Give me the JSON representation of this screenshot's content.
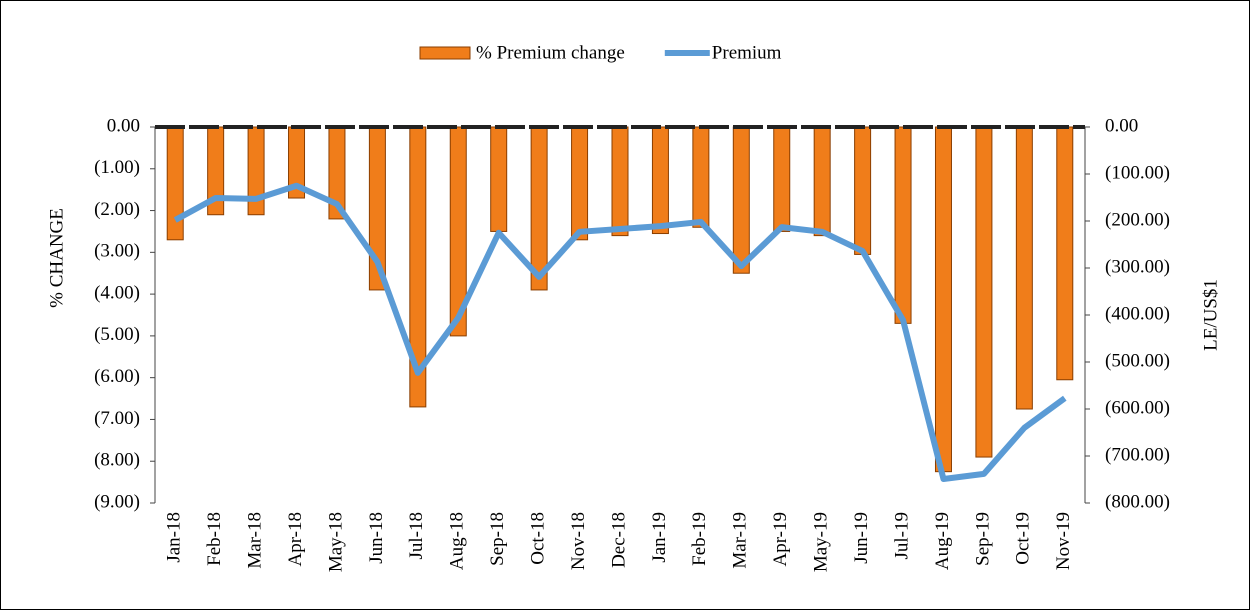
{
  "chart_data": {
    "type": "bar",
    "categories": [
      "Jan-18",
      "Feb-18",
      "Mar-18",
      "Apr-18",
      "May-18",
      "Jun-18",
      "Jul-18",
      "Aug-18",
      "Sep-18",
      "Oct-18",
      "Nov-18",
      "Dec-18",
      "Jan-19",
      "Feb-19",
      "Mar-19",
      "Apr-19",
      "May-19",
      "Jun-19",
      "Jul-19",
      "Aug-19",
      "Sep-19",
      "Oct-19",
      "Nov-19"
    ],
    "series": [
      {
        "name": "% Premium change",
        "color": "#f07d1a",
        "values": [
          -2.7,
          -2.1,
          -2.1,
          -1.7,
          -2.2,
          -3.9,
          -6.7,
          -5.0,
          -2.5,
          -3.9,
          -2.7,
          -2.6,
          -2.55,
          -2.4,
          -3.5,
          -2.5,
          -2.6,
          -3.05,
          -4.7,
          -8.25,
          -7.9,
          -6.75,
          -6.05
        ]
      },
      {
        "name": "Premium",
        "color": "#5b9bd5",
        "type": "line",
        "axis": "y2",
        "values": [
          -198,
          -151,
          -153,
          -125,
          -164,
          -287,
          -523,
          -406,
          -225,
          -319,
          -223,
          -217,
          -211,
          -202,
          -296,
          -213,
          -223,
          -264,
          -411,
          -749,
          -738,
          -640,
          -577
        ]
      }
    ],
    "ylabel": "% CHANGE",
    "y2label": "LE/US$1",
    "ylim": [
      -9,
      0
    ],
    "yticks": [
      {
        "value": 0,
        "label": "0.00"
      },
      {
        "value": -1,
        "label": "(1.00)"
      },
      {
        "value": -2,
        "label": "(2.00)"
      },
      {
        "value": -3,
        "label": "(3.00)"
      },
      {
        "value": -4,
        "label": "(4.00)"
      },
      {
        "value": -5,
        "label": "(5.00)"
      },
      {
        "value": -6,
        "label": "(6.00)"
      },
      {
        "value": -7,
        "label": "(7.00)"
      },
      {
        "value": -8,
        "label": "(8.00)"
      },
      {
        "value": -9,
        "label": "(9.00)"
      }
    ],
    "y2lim": [
      -800,
      0
    ],
    "y2ticks": [
      {
        "value": 0,
        "label": "0.00"
      },
      {
        "value": -100,
        "label": "(100.00)"
      },
      {
        "value": -200,
        "label": "(200.00)"
      },
      {
        "value": -300,
        "label": "(300.00)"
      },
      {
        "value": -400,
        "label": "(400.00)"
      },
      {
        "value": -500,
        "label": "(500.00)"
      },
      {
        "value": -600,
        "label": "(600.00)"
      },
      {
        "value": -700,
        "label": "(700.00)"
      },
      {
        "value": -800,
        "label": "(800.00)"
      }
    ],
    "legend": "top"
  }
}
